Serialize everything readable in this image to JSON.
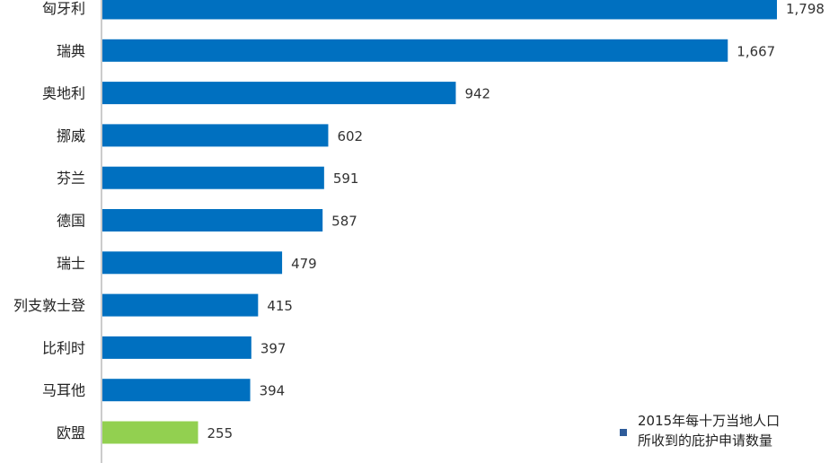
{
  "chart_data": {
    "type": "bar",
    "orientation": "horizontal",
    "categories": [
      "匈牙利",
      "瑞典",
      "奥地利",
      "挪威",
      "芬兰",
      "德国",
      "瑞士",
      "列支敦士登",
      "比利时",
      "马耳他",
      "欧盟"
    ],
    "values": [
      1798,
      1667,
      942,
      602,
      591,
      587,
      479,
      415,
      397,
      394,
      255
    ],
    "value_labels": [
      "1,798",
      "1,667",
      "942",
      "602",
      "591",
      "587",
      "479",
      "415",
      "397",
      "394",
      "255"
    ],
    "series": [
      {
        "name": "2015年每十万当地人口所收到的庇护申请数量",
        "values": [
          1798,
          1667,
          942,
          602,
          591,
          587,
          479,
          415,
          397,
          394,
          255
        ]
      }
    ],
    "legend": {
      "line1": "2015年每十万当地人口",
      "line2": "所收到的庇护申请数量",
      "placement": "bottom-right"
    },
    "colors": {
      "bar": "#0070C0",
      "highlight": "#92D050",
      "legend_swatch": "#2E5C9A",
      "axis": "#999999"
    },
    "highlight_category": "欧盟",
    "xlim": [
      0,
      1800
    ],
    "grid": false,
    "title": "",
    "xlabel": "",
    "ylabel": ""
  }
}
